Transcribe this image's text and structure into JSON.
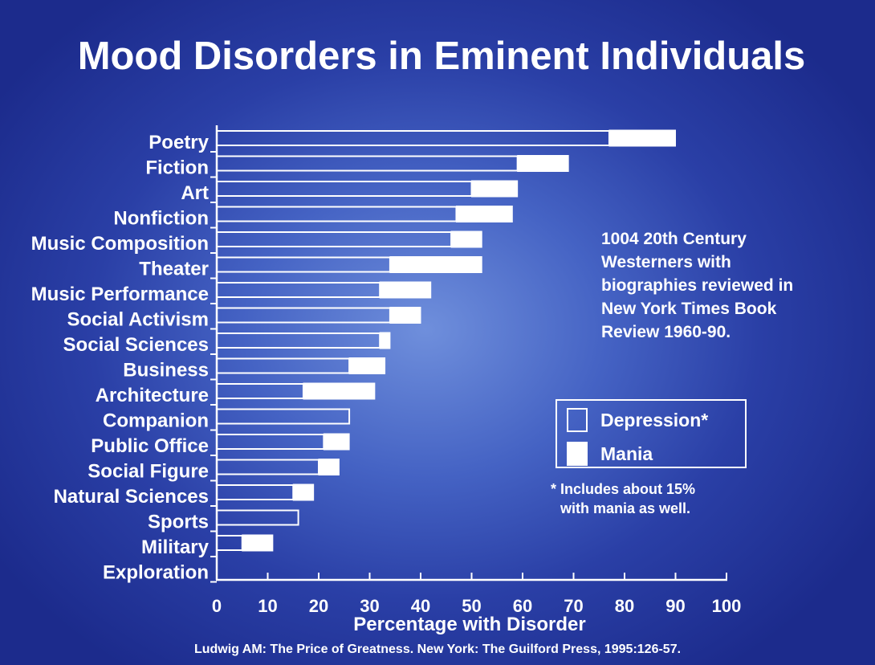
{
  "slide": {
    "title": "Mood Disorders in Eminent Individuals",
    "source": "Ludwig AM: The Price of Greatness. New York: The Guilford Press, 1995:126-57.",
    "note": "1004 20th Century Westerners with biographies reviewed in New York Times Book Review 1960-90.",
    "footnote_line1": "* Includes about 15%",
    "footnote_line2": "with mania as well."
  },
  "chart_data": {
    "type": "bar",
    "orientation": "horizontal",
    "stacked": true,
    "xlabel": "Percentage with Disorder",
    "xlim": [
      0,
      100
    ],
    "xticks": [
      "0",
      "10",
      "20",
      "30",
      "40",
      "50",
      "60",
      "70",
      "80",
      "90",
      "100"
    ],
    "categories": [
      "Poetry",
      "Fiction",
      "Art",
      "Nonfiction",
      "Music Composition",
      "Theater",
      "Music Performance",
      "Social Activism",
      "Social Sciences",
      "Business",
      "Architecture",
      "Companion",
      "Public Office",
      "Social Figure",
      "Natural Sciences",
      "Sports",
      "Military",
      "Exploration"
    ],
    "series": [
      {
        "name": "Depression*",
        "values": [
          77,
          59,
          50,
          47,
          46,
          34,
          32,
          34,
          32,
          26,
          17,
          26,
          21,
          20,
          15,
          16,
          5,
          0
        ],
        "style": "outline"
      },
      {
        "name": "Mania",
        "values": [
          13,
          10,
          9,
          11,
          6,
          18,
          10,
          6,
          2,
          7,
          14,
          0,
          5,
          4,
          4,
          0,
          6,
          0
        ],
        "style": "filled"
      }
    ],
    "legend": "right",
    "grid": false,
    "colors": {
      "background": "#2a3fa6",
      "bars": "#ffffff"
    }
  }
}
